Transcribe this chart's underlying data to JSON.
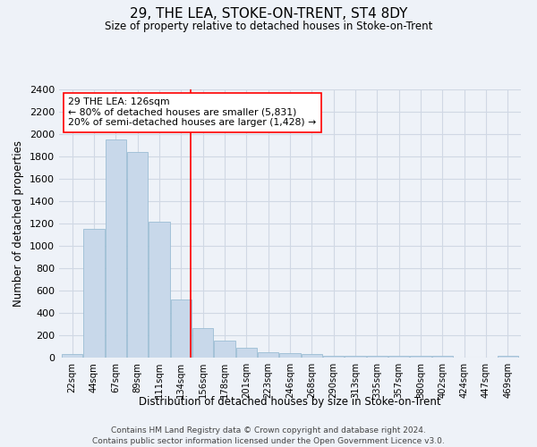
{
  "title": "29, THE LEA, STOKE-ON-TRENT, ST4 8DY",
  "subtitle": "Size of property relative to detached houses in Stoke-on-Trent",
  "xlabel": "Distribution of detached houses by size in Stoke-on-Trent",
  "ylabel": "Number of detached properties",
  "footer_line1": "Contains HM Land Registry data © Crown copyright and database right 2024.",
  "footer_line2": "Contains public sector information licensed under the Open Government Licence v3.0.",
  "bar_labels": [
    "22sqm",
    "44sqm",
    "67sqm",
    "89sqm",
    "111sqm",
    "134sqm",
    "156sqm",
    "178sqm",
    "201sqm",
    "223sqm",
    "246sqm",
    "268sqm",
    "290sqm",
    "313sqm",
    "335sqm",
    "357sqm",
    "380sqm",
    "402sqm",
    "424sqm",
    "447sqm",
    "469sqm"
  ],
  "bar_values": [
    30,
    1150,
    1950,
    1840,
    1220,
    520,
    265,
    150,
    85,
    45,
    40,
    35,
    20,
    20,
    20,
    15,
    15,
    15,
    0,
    0,
    20
  ],
  "bar_color": "#c8d8ea",
  "bar_edgecolor": "#9bbdd4",
  "grid_color": "#d0d8e4",
  "background_color": "#eef2f8",
  "vline_x_index": 5.45,
  "vline_color": "red",
  "annotation_title": "29 THE LEA: 126sqm",
  "annotation_line1": "← 80% of detached houses are smaller (5,831)",
  "annotation_line2": "20% of semi-detached houses are larger (1,428) →",
  "annotation_box_color": "white",
  "annotation_box_edgecolor": "red",
  "ylim": [
    0,
    2400
  ],
  "yticks": [
    0,
    200,
    400,
    600,
    800,
    1000,
    1200,
    1400,
    1600,
    1800,
    2000,
    2200,
    2400
  ]
}
